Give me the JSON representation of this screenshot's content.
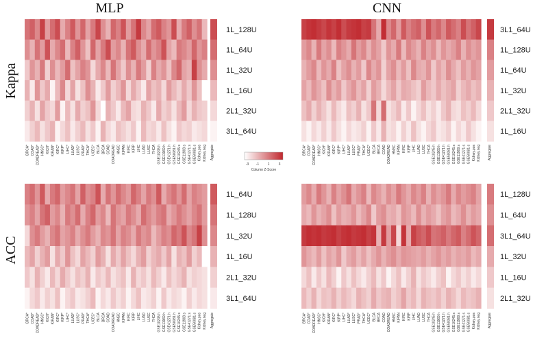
{
  "figure": {
    "column_titles": [
      "MLP",
      "CNN"
    ],
    "row_titles": [
      "Kappa",
      "ACC"
    ],
    "color_key": {
      "label": "Column Z-Score",
      "ticks": [
        "-3",
        "-1",
        "1",
        "3"
      ],
      "low_color": "#ffffff",
      "high_color": "#c0282e"
    }
  },
  "chart_data": [
    {
      "type": "heatmap",
      "title": "MLP",
      "row_group": "Kappa",
      "rows": [
        "1L_128U",
        "1L_64U",
        "1L_32U",
        "1L_16U",
        "2L1_32U",
        "3L1_64U"
      ],
      "columns": [
        "BRCA*",
        "COAD*",
        "COADREAD*",
        "HNSC*",
        "KICH*",
        "KIRAN*",
        "KIRC*",
        "KIRP*",
        "LIHC*",
        "LUAD*",
        "LUSC*",
        "PRAD*",
        "THCA*",
        "UCEC*",
        "BLCA",
        "BRCA",
        "COAD",
        "COADREAD",
        "HNSC",
        "KIPAN",
        "KIRC",
        "KIRP",
        "LIHC",
        "LUAD",
        "LUSC",
        "THCA",
        "GSE10245.h",
        "GSE11969.h",
        "GSE41271.h",
        "GSE50081.h",
        "GSE10245.s",
        "GSE11969.s",
        "GSE41271.s",
        "GSE50081.s",
        "Kidney.pos",
        "Kidney.neg"
      ],
      "aggregate_label": "Aggregate",
      "aggregate": [
        2.4,
        1.9,
        1.4,
        0.8,
        0.4,
        0.1
      ],
      "values": [
        [
          1.8,
          2.1,
          1.5,
          2.6,
          1.2,
          1.9,
          2.4,
          1.0,
          1.6,
          2.2,
          1.3,
          2.0,
          1.1,
          1.7,
          2.5,
          1.4,
          0.9,
          2.0,
          1.6,
          2.3,
          1.2,
          1.8,
          2.7,
          1.5,
          1.1,
          1.9,
          2.2,
          1.6,
          1.3,
          2.4,
          1.0,
          1.7,
          2.1,
          1.4,
          1.8,
          0.8
        ],
        [
          1.4,
          0.9,
          1.8,
          1.2,
          2.3,
          1.0,
          1.5,
          1.9,
          0.8,
          1.6,
          2.1,
          1.3,
          0.7,
          2.0,
          1.1,
          1.7,
          2.4,
          1.2,
          1.5,
          0.9,
          1.8,
          2.2,
          1.4,
          1.0,
          1.9,
          1.3,
          1.6,
          2.3,
          1.1,
          0.8,
          1.7,
          1.5,
          1.2,
          2.0,
          1.3,
          1.6
        ],
        [
          0.6,
          1.3,
          0.9,
          1.7,
          0.5,
          1.4,
          0.8,
          1.2,
          1.9,
          0.7,
          1.1,
          1.6,
          1.3,
          0.4,
          1.0,
          1.5,
          0.8,
          1.8,
          1.1,
          0.6,
          1.4,
          0.9,
          1.7,
          1.2,
          0.5,
          1.6,
          1.0,
          1.3,
          0.7,
          1.5,
          2.0,
          1.1,
          0.9,
          2.6,
          1.4,
          1.0
        ],
        [
          0.9,
          0.2,
          1.3,
          0.6,
          1.0,
          0.1,
          0.8,
          1.5,
          0.4,
          1.1,
          0.3,
          0.7,
          1.4,
          0.9,
          0.2,
          0.6,
          1.2,
          0.5,
          0.8,
          1.3,
          0.4,
          1.0,
          0.6,
          0.2,
          1.1,
          0.7,
          0.9,
          0.4,
          1.2,
          0.8,
          0.5,
          1.0,
          0.6,
          1.3,
          0.7,
          0.0
        ],
        [
          0.5,
          0.9,
          0.3,
          1.1,
          0.6,
          0.4,
          1.2,
          0.1,
          0.8,
          0.3,
          1.0,
          0.5,
          0.7,
          1.3,
          0.4,
          0.0,
          0.9,
          0.6,
          0.2,
          0.8,
          1.1,
          0.4,
          0.3,
          0.9,
          0.6,
          0.2,
          1.0,
          0.5,
          0.7,
          0.3,
          0.8,
          1.2,
          0.4,
          0.9,
          0.6,
          0.5
        ],
        [
          0.2,
          0.5,
          0.8,
          0.3,
          0.6,
          0.9,
          0.1,
          0.4,
          0.7,
          0.2,
          0.5,
          0.8,
          0.3,
          0.6,
          0.1,
          0.9,
          0.4,
          0.2,
          0.7,
          0.5,
          0.3,
          0.6,
          0.1,
          0.8,
          0.4,
          0.5,
          0.2,
          0.7,
          0.3,
          0.1,
          0.6,
          0.4,
          0.5,
          0.2,
          0.3,
          0.4
        ]
      ]
    },
    {
      "type": "heatmap",
      "title": "CNN",
      "row_group": "Kappa",
      "rows": [
        "3L1_64U",
        "1L_128U",
        "1L_64U",
        "1L_32U",
        "2L1_32U",
        "1L_16U"
      ],
      "columns": [
        "BRCA*",
        "COAD*",
        "COADREAD*",
        "HNSC*",
        "KICH*",
        "KIRAN*",
        "KIRC*",
        "KIRP*",
        "LIHC*",
        "LUAD*",
        "LUSC*",
        "PRAD*",
        "THCA*",
        "UCEC*",
        "BLCA",
        "BRCA",
        "COAD",
        "COADREAD",
        "HNSC",
        "KIPAN",
        "KIRC",
        "KIRP",
        "LIHC",
        "LUAD",
        "LUSC",
        "THCA",
        "GSE10245.h",
        "GSE11969.h",
        "GSE41271.h",
        "GSE50081.h",
        "GSE10245.s",
        "GSE11969.s",
        "GSE41271.s",
        "GSE50081.s",
        "Kidney.pos",
        "Kidney.neg"
      ],
      "aggregate_label": "Aggregate",
      "aggregate": [
        2.7,
        1.6,
        1.2,
        0.9,
        0.6,
        0.3
      ],
      "values": [
        [
          2.6,
          2.8,
          2.9,
          2.7,
          2.5,
          2.8,
          2.6,
          2.9,
          2.4,
          2.7,
          2.8,
          2.9,
          2.6,
          2.7,
          1.8,
          1.0,
          2.9,
          1.5,
          2.0,
          1.2,
          2.2,
          1.6,
          1.9,
          2.1,
          1.4,
          2.3,
          1.7,
          2.0,
          1.5,
          2.2,
          1.9,
          1.6,
          2.4,
          1.8,
          2.1,
          2.5
        ],
        [
          1.2,
          1.5,
          0.9,
          1.7,
          1.1,
          1.4,
          0.8,
          1.6,
          1.3,
          1.0,
          1.8,
          1.2,
          1.5,
          0.9,
          1.4,
          1.1,
          0.6,
          1.3,
          1.0,
          1.7,
          0.8,
          1.5,
          1.2,
          0.9,
          1.6,
          1.1,
          1.4,
          0.8,
          1.3,
          1.0,
          1.2,
          1.6,
          0.9,
          1.4,
          1.1,
          1.3
        ],
        [
          0.9,
          1.2,
          1.5,
          0.8,
          1.3,
          1.0,
          1.6,
          0.7,
          1.1,
          1.4,
          0.9,
          1.2,
          0.6,
          1.5,
          1.0,
          1.3,
          0.5,
          1.1,
          1.4,
          0.8,
          1.2,
          0.7,
          1.5,
          1.0,
          0.9,
          1.3,
          0.6,
          1.1,
          0.8,
          1.4,
          1.0,
          0.7,
          1.2,
          0.9,
          1.3,
          1.1
        ],
        [
          1.1,
          0.8,
          1.3,
          1.0,
          0.7,
          1.4,
          0.9,
          1.2,
          0.6,
          1.0,
          1.3,
          0.8,
          1.1,
          0.5,
          1.2,
          0.9,
          0.4,
          0.8,
          1.1,
          0.6,
          1.0,
          0.9,
          0.7,
          0.5,
          1.2,
          0.8,
          0.6,
          1.0,
          0.7,
          0.9,
          1.1,
          0.5,
          0.8,
          1.0,
          0.7,
          0.9
        ],
        [
          0.7,
          1.0,
          0.5,
          0.9,
          0.6,
          0.3,
          0.8,
          0.4,
          0.2,
          0.7,
          0.5,
          0.9,
          0.3,
          0.6,
          1.8,
          0.4,
          1.9,
          0.3,
          0.5,
          0.8,
          0.2,
          0.6,
          0.1,
          0.4,
          0.7,
          0.3,
          0.5,
          0.2,
          0.6,
          0.9,
          0.4,
          0.3,
          0.7,
          0.5,
          0.8,
          0.4
        ],
        [
          0.3,
          0.1,
          0.4,
          0.2,
          0.5,
          0.2,
          0.6,
          0.3,
          0.1,
          0.4,
          0.2,
          0.3,
          0.5,
          0.1,
          0.6,
          0.2,
          0.9,
          0.3,
          0.4,
          0.1,
          0.5,
          0.2,
          0.7,
          0.3,
          0.1,
          0.4,
          0.6,
          0.2,
          0.3,
          0.5,
          0.1,
          0.4,
          0.2,
          0.6,
          0.3,
          0.1
        ]
      ]
    },
    {
      "type": "heatmap",
      "title": "MLP",
      "row_group": "ACC",
      "rows": [
        "1L_64U",
        "1L_128U",
        "1L_32U",
        "1L_16U",
        "2L1_32U",
        "3L1_64U"
      ],
      "columns": [
        "BRCA*",
        "COAD*",
        "COADREAD*",
        "HNSC*",
        "KICH*",
        "KIRAN*",
        "KIRC*",
        "KIRP*",
        "LIHC*",
        "LUAD*",
        "LUSC*",
        "PRAD*",
        "THCA*",
        "UCEC*",
        "BLCA",
        "BRCA",
        "COAD",
        "COADREAD",
        "HNSC",
        "KIPAN",
        "KIRC",
        "KIRP",
        "LIHC",
        "LUAD",
        "LUSC",
        "THCA",
        "GSE10245.h",
        "GSE11969.h",
        "GSE41271.h",
        "GSE50081.h",
        "GSE10245.s",
        "GSE11969.s",
        "GSE41271.s",
        "GSE50081.s",
        "Kidney.pos",
        "Kidney.neg"
      ],
      "aggregate_label": "Aggregate",
      "aggregate": [
        2.2,
        1.8,
        1.5,
        0.9,
        0.5,
        0.2
      ],
      "values": [
        [
          1.6,
          1.9,
          1.3,
          2.2,
          1.0,
          1.7,
          2.0,
          1.2,
          1.5,
          1.8,
          1.1,
          2.1,
          1.4,
          1.6,
          2.3,
          1.0,
          1.8,
          1.3,
          1.9,
          1.5,
          1.2,
          2.0,
          1.6,
          1.1,
          1.7,
          1.4,
          2.2,
          1.0,
          1.5,
          1.8,
          1.3,
          1.9,
          1.1,
          1.6,
          1.4,
          1.2
        ],
        [
          1.3,
          1.6,
          1.1,
          1.8,
          2.1,
          1.2,
          1.5,
          0.9,
          1.7,
          1.4,
          1.9,
          1.0,
          1.6,
          2.0,
          1.2,
          1.5,
          0.8,
          1.8,
          1.3,
          1.1,
          1.7,
          1.4,
          1.0,
          1.9,
          1.5,
          1.2,
          1.6,
          1.8,
          1.0,
          1.3,
          1.7,
          1.4,
          1.1,
          1.5,
          1.8,
          1.2
        ],
        [
          0.4,
          1.4,
          1.7,
          1.2,
          0.9,
          1.5,
          1.8,
          1.1,
          1.3,
          1.6,
          1.0,
          1.4,
          1.7,
          1.2,
          0.9,
          1.5,
          1.3,
          1.8,
          1.1,
          1.6,
          1.4,
          1.0,
          1.7,
          1.3,
          1.5,
          0.8,
          1.2,
          1.6,
          1.4,
          2.0,
          1.7,
          2.3,
          1.5,
          1.8,
          2.6,
          1.4
        ],
        [
          0.8,
          1.1,
          0.5,
          0.9,
          1.2,
          0.3,
          1.0,
          0.6,
          1.3,
          0.7,
          0.4,
          1.1,
          0.8,
          0.5,
          1.2,
          0.9,
          0.3,
          1.0,
          0.6,
          1.1,
          0.7,
          0.4,
          0.9,
          1.2,
          0.5,
          0.8,
          1.0,
          0.6,
          1.1,
          0.3,
          0.9,
          0.7,
          1.2,
          0.5,
          0.8,
          0.0
        ],
        [
          0.6,
          0.3,
          0.9,
          0.5,
          0.2,
          0.8,
          0.4,
          1.0,
          0.6,
          0.3,
          0.7,
          0.5,
          0.9,
          0.2,
          0.6,
          0.4,
          0.8,
          0.3,
          0.5,
          0.7,
          0.2,
          0.9,
          0.4,
          0.6,
          0.3,
          0.8,
          0.5,
          0.2,
          0.7,
          0.4,
          0.6,
          0.9,
          0.3,
          0.5,
          0.4,
          0.3
        ],
        [
          0.1,
          0.4,
          0.6,
          0.2,
          0.5,
          0.3,
          0.7,
          0.1,
          0.4,
          0.6,
          0.2,
          0.3,
          0.5,
          0.8,
          0.1,
          0.4,
          0.2,
          0.6,
          0.3,
          0.5,
          0.1,
          0.4,
          0.7,
          0.2,
          0.3,
          0.5,
          0.1,
          0.6,
          0.2,
          0.4,
          0.3,
          0.1,
          0.5,
          0.2,
          0.4,
          0.3
        ]
      ]
    },
    {
      "type": "heatmap",
      "title": "CNN",
      "row_group": "ACC",
      "rows": [
        "1L_128U",
        "1L_64U",
        "3L1_64U",
        "1L_32U",
        "1L_16U",
        "2L1_32U"
      ],
      "columns": [
        "BRCA*",
        "COAD*",
        "COADREAD*",
        "HNSC*",
        "KICH*",
        "KIRAN*",
        "KIRC*",
        "KIRP*",
        "LIHC*",
        "LUAD*",
        "LUSC*",
        "PRAD*",
        "THCA*",
        "UCEC*",
        "BLCA",
        "BRCA",
        "COAD",
        "COADREAD",
        "HNSC",
        "KIPAN",
        "KIRC",
        "KIRP",
        "LIHC",
        "LUAD",
        "LUSC",
        "THCA",
        "GSE10245.h",
        "GSE11969.h",
        "GSE41271.h",
        "GSE50081.h",
        "GSE10245.s",
        "GSE11969.s",
        "GSE41271.s",
        "GSE50081.s",
        "Kidney.pos",
        "Kidney.neg"
      ],
      "aggregate_label": "Aggregate",
      "aggregate": [
        1.7,
        1.4,
        1.9,
        1.0,
        0.6,
        0.3
      ],
      "values": [
        [
          1.2,
          1.5,
          1.0,
          1.7,
          1.3,
          0.9,
          1.6,
          1.1,
          1.4,
          1.8,
          1.0,
          1.3,
          1.6,
          0.8,
          1.5,
          1.2,
          0.9,
          1.4,
          1.1,
          1.7,
          1.3,
          1.0,
          1.5,
          1.2,
          1.6,
          0.9,
          1.4,
          1.1,
          1.3,
          1.7,
          1.0,
          1.5,
          1.2,
          1.4,
          1.6,
          1.1
        ],
        [
          1.0,
          0.8,
          1.3,
          0.9,
          1.1,
          1.4,
          0.7,
          1.2,
          0.9,
          1.0,
          1.3,
          0.8,
          1.1,
          1.5,
          0.6,
          1.2,
          1.4,
          0.9,
          1.0,
          0.7,
          1.3,
          1.1,
          0.8,
          1.4,
          0.9,
          1.2,
          1.0,
          0.7,
          1.1,
          1.3,
          0.8,
          1.0,
          1.4,
          0.9,
          1.2,
          1.0
        ],
        [
          2.7,
          2.9,
          2.8,
          2.9,
          2.7,
          2.8,
          2.9,
          2.6,
          2.8,
          2.9,
          2.7,
          2.8,
          2.9,
          2.6,
          2.8,
          0.9,
          2.7,
          1.2,
          2.5,
          0.4,
          2.8,
          1.0,
          2.6,
          2.2,
          2.0,
          2.4,
          1.8,
          1.9,
          2.1,
          1.7,
          2.0,
          2.2,
          1.6,
          1.9,
          2.3,
          2.0
        ],
        [
          1.3,
          1.0,
          0.8,
          1.2,
          0.7,
          1.1,
          0.9,
          1.3,
          0.6,
          1.0,
          1.2,
          0.8,
          1.1,
          0.7,
          1.0,
          1.3,
          0.9,
          1.2,
          1.4,
          1.0,
          1.3,
          1.2,
          1.1,
          1.0,
          1.2,
          0.9,
          1.1,
          1.3,
          1.0,
          1.2,
          0.9,
          1.1,
          1.0,
          1.2,
          0.8,
          1.0
        ],
        [
          0.4,
          0.7,
          0.2,
          0.6,
          0.3,
          0.8,
          0.5,
          0.1,
          0.6,
          0.3,
          0.7,
          0.4,
          0.2,
          0.5,
          0.8,
          0.3,
          0.6,
          0.1,
          0.4,
          0.7,
          0.2,
          0.5,
          0.9,
          0.3,
          0.6,
          0.4,
          0.2,
          0.5,
          0.7,
          0.1,
          0.4,
          0.6,
          0.3,
          0.5,
          0.2,
          0.4
        ],
        [
          0.8,
          0.5,
          0.9,
          0.4,
          0.7,
          0.6,
          0.9,
          0.5,
          0.8,
          0.6,
          0.4,
          0.9,
          0.7,
          0.5,
          1.0,
          0.6,
          0.8,
          0.9,
          0.5,
          0.7,
          1.1,
          0.6,
          0.8,
          0.4,
          0.9,
          0.7,
          0.6,
          0.8,
          0.5,
          0.9,
          0.7,
          0.4,
          0.8,
          0.6,
          0.7,
          0.9
        ]
      ]
    }
  ]
}
